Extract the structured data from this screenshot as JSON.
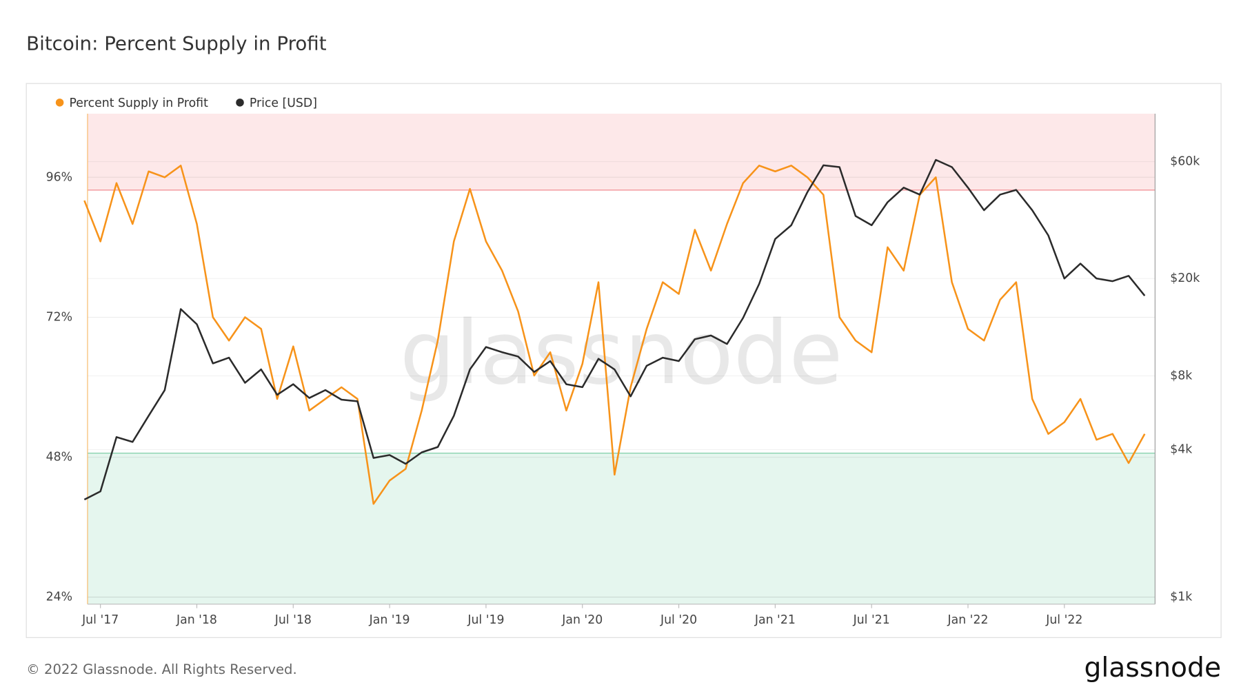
{
  "chart_data": {
    "type": "line",
    "title": "Bitcoin: Percent Supply in Profit",
    "watermark": "glassnode",
    "footer": "© 2022 Glassnode. All Rights Reserved.",
    "logo": "glassnode",
    "x": [
      "2017-06",
      "2017-07",
      "2017-08",
      "2017-09",
      "2017-10",
      "2017-11",
      "2017-12",
      "2018-01",
      "2018-02",
      "2018-03",
      "2018-04",
      "2018-05",
      "2018-06",
      "2018-07",
      "2018-08",
      "2018-09",
      "2018-10",
      "2018-11",
      "2018-12",
      "2019-01",
      "2019-02",
      "2019-03",
      "2019-04",
      "2019-05",
      "2019-06",
      "2019-07",
      "2019-08",
      "2019-09",
      "2019-10",
      "2019-11",
      "2019-12",
      "2020-01",
      "2020-02",
      "2020-03",
      "2020-04",
      "2020-05",
      "2020-06",
      "2020-07",
      "2020-08",
      "2020-09",
      "2020-10",
      "2020-11",
      "2020-12",
      "2021-01",
      "2021-02",
      "2021-03",
      "2021-04",
      "2021-05",
      "2021-06",
      "2021-07",
      "2021-08",
      "2021-09",
      "2021-10",
      "2021-11",
      "2021-12",
      "2022-01",
      "2022-02",
      "2022-03",
      "2022-04",
      "2022-05",
      "2022-06",
      "2022-07",
      "2022-08",
      "2022-09",
      "2022-10",
      "2022-11",
      "2022-12"
    ],
    "xlim": [
      "2017-06",
      "2022-12"
    ],
    "xticks": [
      {
        "value": "2017-07",
        "label": "Jul '17"
      },
      {
        "value": "2018-01",
        "label": "Jan '18"
      },
      {
        "value": "2018-07",
        "label": "Jul '18"
      },
      {
        "value": "2019-01",
        "label": "Jan '19"
      },
      {
        "value": "2019-07",
        "label": "Jul '19"
      },
      {
        "value": "2020-01",
        "label": "Jan '20"
      },
      {
        "value": "2020-07",
        "label": "Jul '20"
      },
      {
        "value": "2021-01",
        "label": "Jan '21"
      },
      {
        "value": "2021-07",
        "label": "Jul '21"
      },
      {
        "value": "2022-01",
        "label": "Jan '22"
      },
      {
        "value": "2022-07",
        "label": "Jul '22"
      }
    ],
    "ylim": [
      22.8,
      106.9
    ],
    "yticks": [
      {
        "value": 24,
        "label": "24%"
      },
      {
        "value": 48,
        "label": "48%"
      },
      {
        "value": 72,
        "label": "72%"
      },
      {
        "value": 96,
        "label": "96%"
      }
    ],
    "y2lim": [
      935,
      94200
    ],
    "y2log": true,
    "y2ticks": [
      {
        "value": 1000,
        "label": "$1k"
      },
      {
        "value": 4000,
        "label": "$4k"
      },
      {
        "value": 8000,
        "label": "$8k"
      },
      {
        "value": 20000,
        "label": "$20k"
      },
      {
        "value": 60000,
        "label": "$60k"
      }
    ],
    "upper_threshold": 93.8,
    "lower_threshold": 48.7,
    "grid": true,
    "legend": "top-left",
    "series": [
      {
        "name": "Percent Supply in Profit",
        "color": "#f7931a",
        "values": [
          92,
          85,
          95,
          88,
          97,
          96,
          98,
          88,
          72,
          68,
          72,
          70,
          58,
          67,
          56,
          58,
          60,
          58,
          40,
          44,
          46,
          56,
          68,
          85,
          94,
          85,
          80,
          73,
          62,
          66,
          56,
          64,
          78,
          45,
          60,
          70,
          78,
          76,
          87,
          80,
          88,
          95,
          98,
          97,
          98,
          96,
          93,
          72,
          68,
          66,
          84,
          80,
          93,
          96,
          78,
          70,
          68,
          75,
          78,
          58,
          52,
          54,
          58,
          51,
          52,
          47,
          52
        ]
      },
      {
        "name": "Price [USD]",
        "color": "#2b2b2b",
        "axis": "y2",
        "values": [
          2500,
          2700,
          4500,
          4300,
          5500,
          7000,
          15000,
          13000,
          9000,
          9500,
          7500,
          8500,
          6700,
          7400,
          6500,
          7000,
          6400,
          6300,
          3700,
          3800,
          3500,
          3900,
          4100,
          5500,
          8500,
          10500,
          10000,
          9600,
          8300,
          9200,
          7400,
          7200,
          9400,
          8500,
          6600,
          8800,
          9500,
          9200,
          11300,
          11700,
          10800,
          13800,
          19000,
          29000,
          33000,
          45000,
          58000,
          57000,
          36000,
          33000,
          41000,
          47000,
          44000,
          61000,
          57000,
          47000,
          38000,
          44000,
          46000,
          38000,
          30000,
          20000,
          23000,
          20000,
          19500,
          20500,
          17000
        ]
      }
    ]
  }
}
